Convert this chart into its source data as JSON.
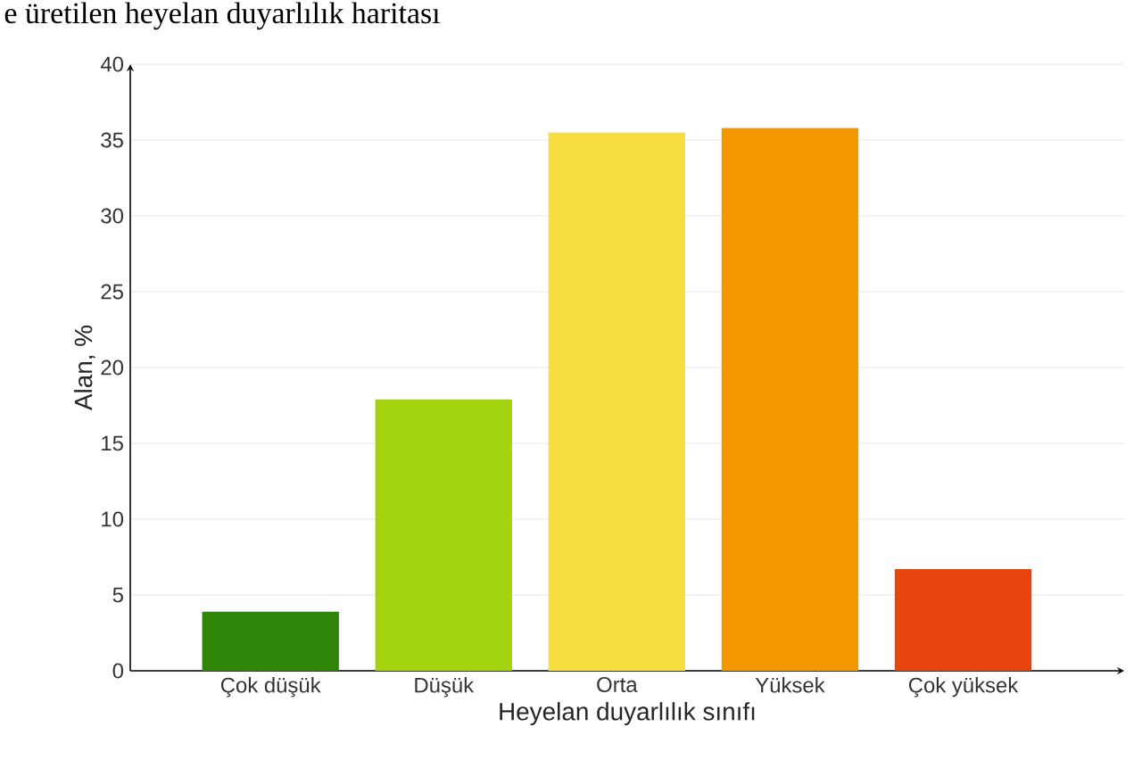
{
  "chart_data": {
    "type": "bar",
    "title": "e üretilen heyelan duyarlılık haritası",
    "xlabel": "Heyelan duyarlılık sınıfı",
    "ylabel": "Alan, %",
    "categories": [
      "Çok düşük",
      "Düşük",
      "Orta",
      "Yüksek",
      "Çok yüksek"
    ],
    "values": [
      3.9,
      17.9,
      35.5,
      35.8,
      6.7
    ],
    "colors": [
      "#2e8507",
      "#a3d20e",
      "#f6de40",
      "#f39800",
      "#e6450f"
    ],
    "ylim": [
      0,
      40
    ],
    "yticks": [
      0,
      5,
      10,
      15,
      20,
      25,
      30,
      35,
      40
    ],
    "grid": "y"
  }
}
